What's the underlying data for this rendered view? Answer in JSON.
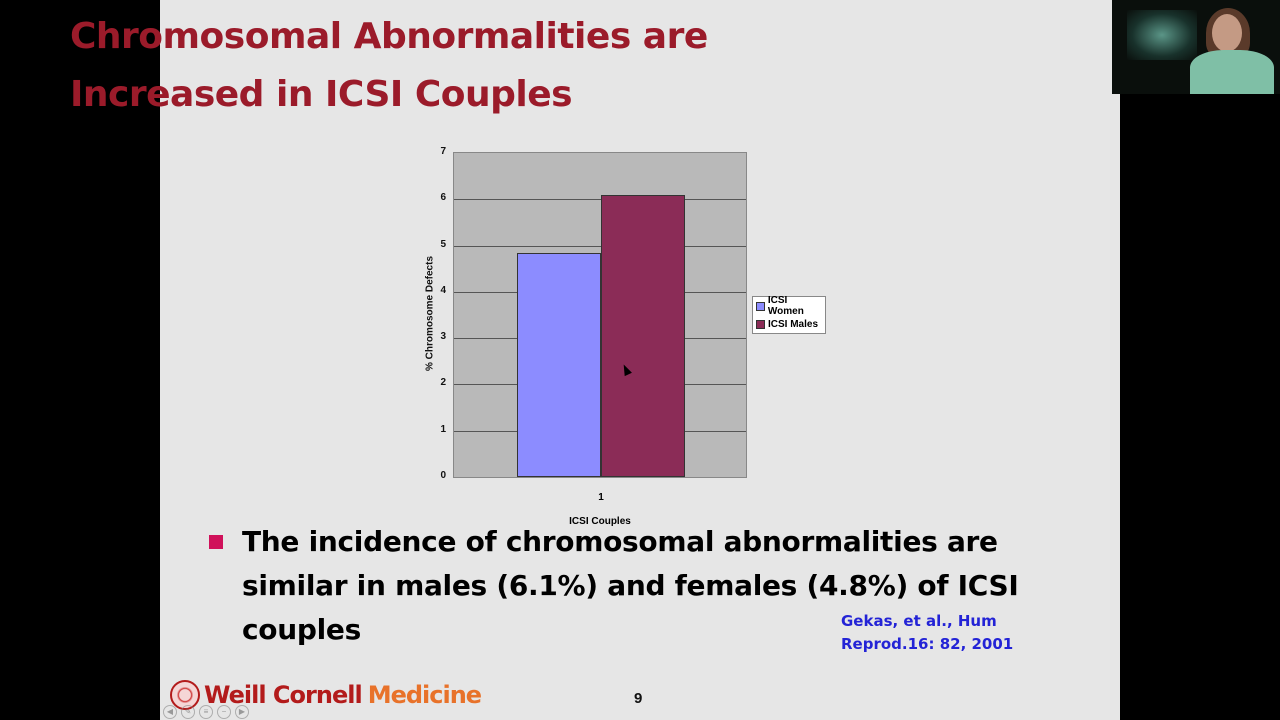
{
  "slide": {
    "title_line1": "Chromosomal Abnormalities are",
    "title_line2": "Increased in ICSI Couples",
    "bullet": "The incidence of chromosomal abnormalities are similar in males (6.1%) and females (4.8%) of ICSI couples",
    "citation_line1": "Gekas, et al., Hum",
    "citation_line2": "Reprod.16: 82, 2001",
    "logo_part1": "Weill Cornell",
    "logo_part2": "Medicine",
    "page_number": "9"
  },
  "nav": {
    "prev": "◀",
    "pen": "✎",
    "menu": "≡",
    "minus": "−",
    "next": "▶"
  },
  "chart_data": {
    "type": "bar",
    "categories": [
      "1"
    ],
    "series": [
      {
        "name": "ICSI Women",
        "values": [
          4.85
        ],
        "color": "#8c8cff"
      },
      {
        "name": "ICSI Males",
        "values": [
          6.1
        ],
        "color": "#8b2c57"
      }
    ],
    "title": "",
    "xlabel": "ICSI Couples",
    "ylabel": "% Chromosome Defects",
    "ylim": [
      0,
      7
    ],
    "yticks": [
      "0",
      "1",
      "2",
      "3",
      "4",
      "5",
      "6",
      "7"
    ],
    "grid": true,
    "legend_position": "right",
    "plot_background": "#b9b9b9"
  }
}
